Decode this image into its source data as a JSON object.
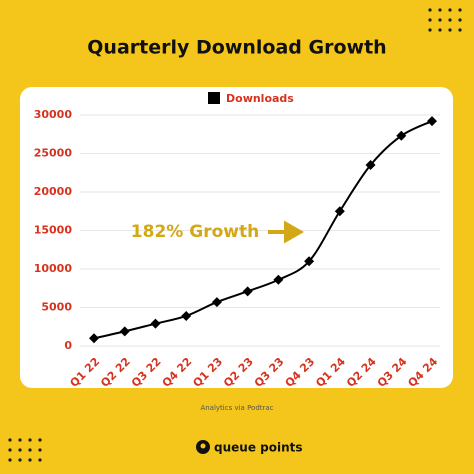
{
  "chart_data": {
    "type": "line",
    "title": "Quarterly Download Growth",
    "categories": [
      "Q1 22",
      "Q2 22",
      "Q3 22",
      "Q4 22",
      "Q1 23",
      "Q2 23",
      "Q3 23",
      "Q4 23",
      "Q1 24",
      "Q2 24",
      "Q3 24",
      "Q4 24"
    ],
    "series": [
      {
        "name": "Downloads",
        "color": "#000000",
        "values": [
          1000,
          1900,
          2900,
          3900,
          5700,
          7100,
          8600,
          11000,
          17500,
          23500,
          27300,
          29200
        ]
      }
    ],
    "ylim": [
      0,
      30000
    ],
    "yticks": [
      0,
      5000,
      10000,
      15000,
      20000,
      25000,
      30000
    ],
    "grid": true,
    "annotation": "182% Growth",
    "source": "Analytics via Podtrac",
    "brand": "queue points"
  }
}
